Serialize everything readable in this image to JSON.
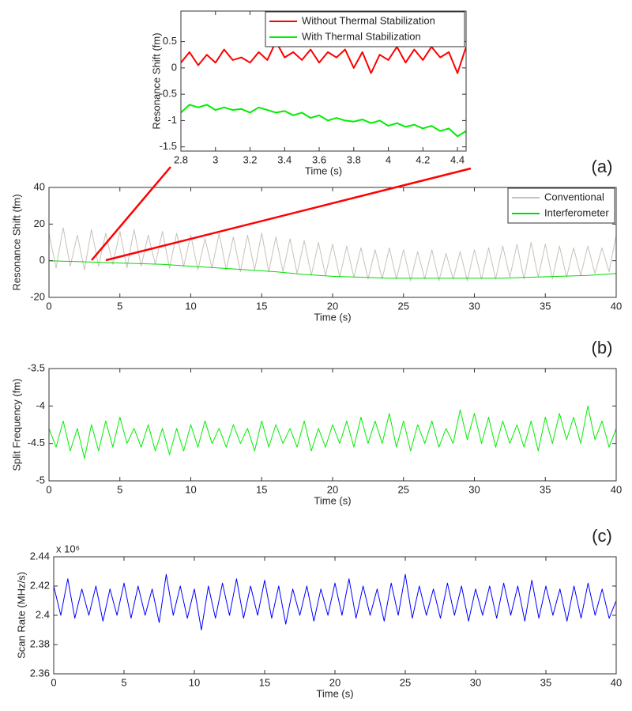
{
  "chart_data": [
    {
      "type": "line",
      "xlabel": "Time (s)",
      "ylabel": "Resonance Shift (fm)",
      "xlim": [
        2.8,
        4.45
      ],
      "ylim": [
        -1.58,
        1.08
      ],
      "xticks": [
        2.8,
        3,
        3.2,
        3.4,
        3.6,
        3.8,
        4,
        4.2,
        4.4
      ],
      "yticks": [
        -1.5,
        -1,
        -0.5,
        0,
        0.5
      ],
      "legend": "top-right",
      "x": [
        2.8,
        2.85,
        2.9,
        2.95,
        3,
        3.05,
        3.1,
        3.15,
        3.2,
        3.25,
        3.3,
        3.35,
        3.4,
        3.45,
        3.5,
        3.55,
        3.6,
        3.65,
        3.7,
        3.75,
        3.8,
        3.85,
        3.9,
        3.95,
        4,
        4.05,
        4.1,
        4.15,
        4.2,
        4.25,
        4.3,
        4.35,
        4.4,
        4.45
      ],
      "series": [
        {
          "name": "Without Thermal Stabilization",
          "color": "#ff0000",
          "values": [
            0.1,
            0.3,
            0.05,
            0.25,
            0.1,
            0.35,
            0.15,
            0.2,
            0.1,
            0.3,
            0.15,
            0.5,
            0.2,
            0.3,
            0.15,
            0.35,
            0.1,
            0.3,
            0.2,
            0.35,
            0.0,
            0.3,
            -0.1,
            0.25,
            0.15,
            0.4,
            0.1,
            0.35,
            0.15,
            0.4,
            0.2,
            0.3,
            -0.1,
            0.4
          ]
        },
        {
          "name": "With Thermal Stabilization",
          "color": "#00ee00",
          "values": [
            -0.85,
            -0.7,
            -0.75,
            -0.7,
            -0.8,
            -0.75,
            -0.8,
            -0.78,
            -0.85,
            -0.75,
            -0.8,
            -0.85,
            -0.82,
            -0.9,
            -0.85,
            -0.95,
            -0.9,
            -1.0,
            -0.95,
            -1.0,
            -1.02,
            -0.98,
            -1.05,
            -1.0,
            -1.1,
            -1.05,
            -1.12,
            -1.08,
            -1.15,
            -1.1,
            -1.2,
            -1.15,
            -1.3,
            -1.2
          ]
        }
      ]
    },
    {
      "type": "line",
      "panel_label": "(a)",
      "xlabel": "Time (s)",
      "ylabel": "Resonance Shift (fm)",
      "xlim": [
        0,
        40
      ],
      "ylim": [
        -20,
        40
      ],
      "xticks": [
        0,
        5,
        10,
        15,
        20,
        25,
        30,
        35,
        40
      ],
      "yticks": [
        -20,
        0,
        20,
        40
      ],
      "legend": "top-right",
      "x": [
        0,
        0.5,
        1,
        1.5,
        2,
        2.5,
        3,
        3.5,
        4,
        4.5,
        5,
        5.5,
        6,
        6.5,
        7,
        7.5,
        8,
        8.5,
        9,
        9.5,
        10,
        10.5,
        11,
        11.5,
        12,
        12.5,
        13,
        13.5,
        14,
        14.5,
        15,
        15.5,
        16,
        16.5,
        17,
        17.5,
        18,
        18.5,
        19,
        19.5,
        20,
        20.5,
        21,
        21.5,
        22,
        22.5,
        23,
        23.5,
        24,
        24.5,
        25,
        25.5,
        26,
        26.5,
        27,
        27.5,
        28,
        28.5,
        29,
        29.5,
        30,
        30.5,
        31,
        31.5,
        32,
        32.5,
        33,
        33.5,
        34,
        34.5,
        35,
        35.5,
        36,
        36.5,
        37,
        37.5,
        38,
        38.5,
        39,
        39.5,
        40
      ],
      "series": [
        {
          "name": "Conventional",
          "color": "#c8c2b8",
          "values": [
            15,
            -4,
            18,
            -3,
            14,
            -5,
            17,
            -3,
            15,
            -2,
            16,
            -4,
            17,
            -3,
            14,
            -2,
            16,
            -4,
            15,
            -3,
            14,
            -5,
            12,
            -4,
            15,
            -5,
            13,
            -6,
            14,
            -5,
            15,
            -6,
            13,
            -6,
            12,
            -7,
            11,
            -8,
            10,
            -8,
            9,
            -9,
            8,
            -9,
            7,
            -10,
            6,
            -10,
            7,
            -10,
            6,
            -11,
            5,
            -10,
            6,
            -11,
            4,
            -10,
            5,
            -11,
            6,
            -10,
            7,
            -10,
            8,
            -9,
            9,
            -10,
            10,
            -9,
            9,
            -10,
            8,
            -9,
            7,
            -8,
            8,
            -7,
            7,
            -6,
            14
          ]
        },
        {
          "name": "Interferometer",
          "color": "#00dd00",
          "x": [
            0,
            2,
            4,
            6,
            8,
            10,
            12,
            14,
            16,
            18,
            20,
            22,
            24,
            26,
            28,
            30,
            32,
            34,
            36,
            38,
            40
          ],
          "values": [
            0,
            -0.5,
            -1,
            -1.5,
            -2,
            -3,
            -4,
            -5,
            -6,
            -7.5,
            -8.5,
            -9,
            -9.5,
            -9.5,
            -9.5,
            -9.5,
            -9.5,
            -9,
            -8.5,
            -8,
            -7
          ]
        }
      ]
    },
    {
      "type": "line",
      "panel_label": "(b)",
      "xlabel": "Time (s)",
      "ylabel": "Split Frequency (fm)",
      "xlim": [
        0,
        40
      ],
      "ylim": [
        -5,
        -3.5
      ],
      "xticks": [
        0,
        5,
        10,
        15,
        20,
        25,
        30,
        35,
        40
      ],
      "yticks": [
        -5,
        -4.5,
        -4,
        -3.5
      ],
      "x": [
        0,
        0.5,
        1,
        1.5,
        2,
        2.5,
        3,
        3.5,
        4,
        4.5,
        5,
        5.5,
        6,
        6.5,
        7,
        7.5,
        8,
        8.5,
        9,
        9.5,
        10,
        10.5,
        11,
        11.5,
        12,
        12.5,
        13,
        13.5,
        14,
        14.5,
        15,
        15.5,
        16,
        16.5,
        17,
        17.5,
        18,
        18.5,
        19,
        19.5,
        20,
        20.5,
        21,
        21.5,
        22,
        22.5,
        23,
        23.5,
        24,
        24.5,
        25,
        25.5,
        26,
        26.5,
        27,
        27.5,
        28,
        28.5,
        29,
        29.5,
        30,
        30.5,
        31,
        31.5,
        32,
        32.5,
        33,
        33.5,
        34,
        34.5,
        35,
        35.5,
        36,
        36.5,
        37,
        37.5,
        38,
        38.5,
        39,
        39.5,
        40
      ],
      "series": [
        {
          "color": "#00ee00",
          "values": [
            -4.3,
            -4.55,
            -4.2,
            -4.6,
            -4.3,
            -4.7,
            -4.25,
            -4.6,
            -4.2,
            -4.55,
            -4.15,
            -4.5,
            -4.3,
            -4.55,
            -4.25,
            -4.6,
            -4.3,
            -4.65,
            -4.3,
            -4.6,
            -4.25,
            -4.55,
            -4.2,
            -4.5,
            -4.3,
            -4.55,
            -4.25,
            -4.5,
            -4.3,
            -4.6,
            -4.2,
            -4.55,
            -4.25,
            -4.5,
            -4.3,
            -4.55,
            -4.2,
            -4.6,
            -4.3,
            -4.55,
            -4.25,
            -4.5,
            -4.2,
            -4.55,
            -4.15,
            -4.5,
            -4.2,
            -4.5,
            -4.1,
            -4.55,
            -4.2,
            -4.6,
            -4.25,
            -4.5,
            -4.2,
            -4.55,
            -4.3,
            -4.5,
            -4.05,
            -4.45,
            -4.1,
            -4.5,
            -4.15,
            -4.55,
            -4.2,
            -4.5,
            -4.25,
            -4.55,
            -4.2,
            -4.6,
            -4.15,
            -4.5,
            -4.1,
            -4.45,
            -4.15,
            -4.5,
            -4.0,
            -4.45,
            -4.2,
            -4.55,
            -4.3
          ]
        }
      ]
    },
    {
      "type": "line",
      "panel_label": "(c)",
      "xlabel": "Time (s)",
      "ylabel": "Scan Rate (MHz/s)",
      "y_multiplier": "x 10⁶",
      "xlim": [
        0,
        40
      ],
      "ylim": [
        2.36,
        2.44
      ],
      "xticks": [
        0,
        5,
        10,
        15,
        20,
        25,
        30,
        35,
        40
      ],
      "yticks": [
        2.36,
        2.38,
        2.4,
        2.42,
        2.44
      ],
      "x": [
        0,
        0.5,
        1,
        1.5,
        2,
        2.5,
        3,
        3.5,
        4,
        4.5,
        5,
        5.5,
        6,
        6.5,
        7,
        7.5,
        8,
        8.5,
        9,
        9.5,
        10,
        10.5,
        11,
        11.5,
        12,
        12.5,
        13,
        13.5,
        14,
        14.5,
        15,
        15.5,
        16,
        16.5,
        17,
        17.5,
        18,
        18.5,
        19,
        19.5,
        20,
        20.5,
        21,
        21.5,
        22,
        22.5,
        23,
        23.5,
        24,
        24.5,
        25,
        25.5,
        26,
        26.5,
        27,
        27.5,
        28,
        28.5,
        29,
        29.5,
        30,
        30.5,
        31,
        31.5,
        32,
        32.5,
        33,
        33.5,
        34,
        34.5,
        35,
        35.5,
        36,
        36.5,
        37,
        37.5,
        38,
        38.5,
        39,
        39.5,
        40
      ],
      "series": [
        {
          "color": "#0000ff",
          "values": [
            2.42,
            2.4,
            2.425,
            2.398,
            2.418,
            2.4,
            2.42,
            2.396,
            2.418,
            2.4,
            2.422,
            2.398,
            2.42,
            2.4,
            2.418,
            2.395,
            2.428,
            2.4,
            2.42,
            2.398,
            2.418,
            2.39,
            2.42,
            2.398,
            2.422,
            2.4,
            2.425,
            2.398,
            2.42,
            2.4,
            2.424,
            2.398,
            2.42,
            2.394,
            2.418,
            2.4,
            2.42,
            2.396,
            2.418,
            2.4,
            2.422,
            2.4,
            2.425,
            2.398,
            2.42,
            2.4,
            2.418,
            2.396,
            2.422,
            2.4,
            2.428,
            2.398,
            2.42,
            2.4,
            2.418,
            2.398,
            2.422,
            2.4,
            2.42,
            2.396,
            2.418,
            2.4,
            2.42,
            2.398,
            2.422,
            2.4,
            2.42,
            2.396,
            2.424,
            2.398,
            2.42,
            2.4,
            2.418,
            2.396,
            2.42,
            2.398,
            2.422,
            2.4,
            2.418,
            2.398,
            2.41
          ]
        }
      ]
    }
  ]
}
